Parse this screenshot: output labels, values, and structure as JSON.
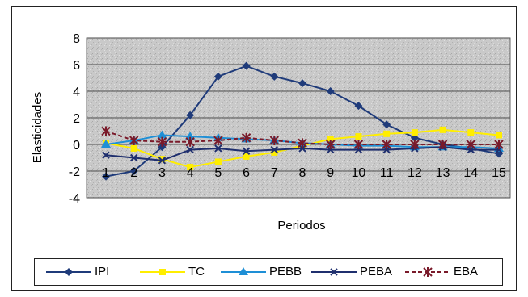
{
  "chart_data": {
    "type": "line",
    "title": "",
    "xlabel": "Periodos",
    "ylabel": "Elasticidades",
    "x": [
      1,
      2,
      3,
      4,
      5,
      6,
      7,
      8,
      9,
      10,
      11,
      12,
      13,
      14,
      15
    ],
    "ylim": [
      -4,
      8
    ],
    "yticks": [
      -4,
      -2,
      0,
      2,
      4,
      6,
      8
    ],
    "grid": true,
    "legend_position": "bottom",
    "series": [
      {
        "name": "IPI",
        "color": "#1f3b7a",
        "marker": "diamond",
        "values": [
          -2.4,
          -2.0,
          -0.2,
          2.2,
          5.1,
          5.9,
          5.1,
          4.6,
          4.0,
          2.9,
          1.5,
          0.5,
          0.0,
          -0.3,
          -0.7
        ]
      },
      {
        "name": "TC",
        "color": "#ffee00",
        "marker": "square",
        "values": [
          0.1,
          -0.3,
          -1.1,
          -1.7,
          -1.3,
          -0.9,
          -0.6,
          -0.1,
          0.4,
          0.6,
          0.8,
          0.9,
          1.1,
          0.9,
          0.7
        ]
      },
      {
        "name": "PEBB",
        "color": "#1e8fd6",
        "marker": "triangle",
        "values": [
          0.0,
          0.3,
          0.7,
          0.6,
          0.5,
          0.4,
          0.3,
          0.1,
          0.0,
          -0.1,
          -0.1,
          -0.2,
          -0.2,
          -0.2,
          -0.3
        ]
      },
      {
        "name": "PEBA",
        "color": "#1f2f6e",
        "marker": "x",
        "values": [
          -0.8,
          -1.0,
          -1.2,
          -0.4,
          -0.3,
          -0.5,
          -0.4,
          -0.3,
          -0.4,
          -0.4,
          -0.4,
          -0.3,
          -0.2,
          -0.4,
          -0.4
        ]
      },
      {
        "name": "EBA",
        "color": "#7a1a2a",
        "marker": "star",
        "values": [
          1.0,
          0.3,
          0.2,
          0.2,
          0.3,
          0.5,
          0.3,
          0.1,
          0.0,
          0.0,
          0.0,
          0.0,
          0.0,
          0.0,
          0.0
        ]
      }
    ]
  }
}
